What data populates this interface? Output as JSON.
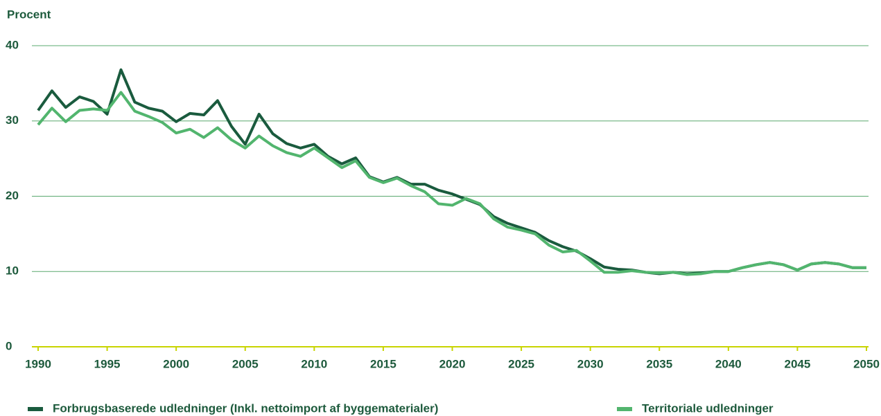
{
  "chart_data": {
    "type": "line",
    "y_label": "Procent",
    "x": [
      1990,
      1991,
      1992,
      1993,
      1994,
      1995,
      1996,
      1997,
      1998,
      1999,
      2000,
      2001,
      2002,
      2003,
      2004,
      2005,
      2006,
      2007,
      2008,
      2009,
      2010,
      2011,
      2012,
      2013,
      2014,
      2015,
      2016,
      2017,
      2018,
      2019,
      2020,
      2021,
      2022,
      2023,
      2024,
      2025,
      2026,
      2027,
      2028,
      2029,
      2030,
      2031,
      2032,
      2033,
      2034,
      2035,
      2036,
      2037,
      2038,
      2039,
      2040,
      2041,
      2042,
      2043,
      2044,
      2045,
      2046,
      2047,
      2048,
      2049,
      2050
    ],
    "series": [
      {
        "name": "Forbrugsbaserede udledninger (Inkl. nettoimport af byggematerialer)",
        "color": "#1a5b3e",
        "values": [
          31.4,
          34.0,
          31.8,
          33.2,
          32.6,
          30.9,
          36.8,
          32.5,
          31.7,
          31.3,
          29.9,
          31.0,
          30.8,
          32.7,
          29.3,
          26.9,
          30.9,
          28.3,
          27.0,
          26.4,
          26.9,
          25.3,
          24.3,
          25.1,
          22.6,
          21.9,
          22.5,
          21.6,
          21.6,
          20.8,
          20.3,
          19.6,
          18.9,
          17.3,
          16.4,
          15.8,
          15.2,
          14.1,
          13.3,
          12.7,
          11.7,
          10.6,
          10.3,
          10.2,
          9.9,
          9.7,
          9.9,
          9.7,
          9.8,
          10.0,
          10.0,
          10.5,
          10.9,
          11.2,
          10.9,
          10.2,
          11.0,
          11.2,
          11.0,
          10.5,
          10.5
        ]
      },
      {
        "name": "Territoriale udledninger",
        "color": "#52b56e",
        "values": [
          29.5,
          31.7,
          29.9,
          31.4,
          31.6,
          31.4,
          33.8,
          31.3,
          30.6,
          29.8,
          28.4,
          28.9,
          27.8,
          29.1,
          27.5,
          26.4,
          28.0,
          26.7,
          25.8,
          25.3,
          26.4,
          25.1,
          23.8,
          24.7,
          22.5,
          21.8,
          22.4,
          21.4,
          20.6,
          19.0,
          18.8,
          19.7,
          19.0,
          17.0,
          15.9,
          15.5,
          15.0,
          13.5,
          12.6,
          12.8,
          11.4,
          9.9,
          9.9,
          10.1,
          9.9,
          9.8,
          9.9,
          9.6,
          9.7,
          10.0,
          10.0,
          10.5,
          10.9,
          11.2,
          10.9,
          10.2,
          11.0,
          11.2,
          11.0,
          10.5,
          10.5
        ]
      }
    ],
    "xlim": [
      1990,
      2050
    ],
    "xticks": [
      1990,
      1995,
      2000,
      2005,
      2010,
      2015,
      2020,
      2025,
      2030,
      2035,
      2040,
      2045,
      2050
    ],
    "ylim": [
      0,
      40
    ],
    "yticks": [
      0,
      10,
      20,
      30,
      40
    ],
    "grid": true,
    "grid_color": "#5aa96f",
    "zero_line_color": "#c8d400",
    "legend": "bottom"
  }
}
